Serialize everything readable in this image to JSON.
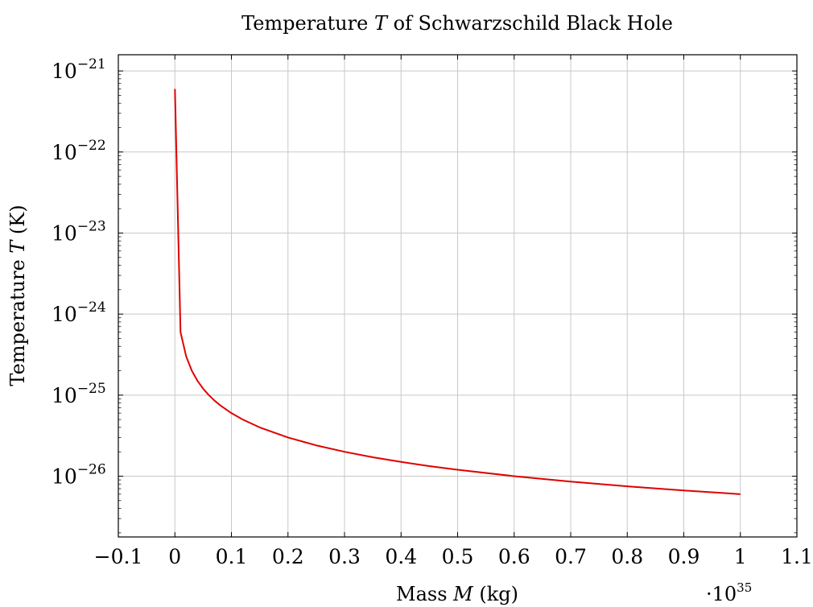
{
  "chart_data": {
    "type": "line",
    "title": "Temperature T of Schwarzschild Black Hole",
    "title_parts": {
      "before": "Temperature ",
      "var": "T",
      "after": " of Schwarzschild Black Hole"
    },
    "xlabel": "Mass M (kg)",
    "xlabel_parts": {
      "before": "Mass ",
      "var": "M",
      "after": " (kg)"
    },
    "ylabel": "Temperature T (K)",
    "ylabel_parts": {
      "before": "Temperature ",
      "var": "T",
      "after": " (K)"
    },
    "x_scale_note": {
      "base": "·10",
      "exp": "35"
    },
    "xlim": [
      -0.1,
      1.1
    ],
    "ylim_log10": [
      -26.75,
      -20.8
    ],
    "y_scale": "log",
    "grid": true,
    "x_ticks": [
      {
        "value": -0.1,
        "label": "−0.1"
      },
      {
        "value": 0,
        "label": "0"
      },
      {
        "value": 0.1,
        "label": "0.1"
      },
      {
        "value": 0.2,
        "label": "0.2"
      },
      {
        "value": 0.3,
        "label": "0.3"
      },
      {
        "value": 0.4,
        "label": "0.4"
      },
      {
        "value": 0.5,
        "label": "0.5"
      },
      {
        "value": 0.6,
        "label": "0.6"
      },
      {
        "value": 0.7,
        "label": "0.7"
      },
      {
        "value": 0.8,
        "label": "0.8"
      },
      {
        "value": 0.9,
        "label": "0.9"
      },
      {
        "value": 1,
        "label": "1"
      },
      {
        "value": 1.1,
        "label": "1.1"
      }
    ],
    "y_ticks": [
      {
        "exp": -21,
        "base": "10",
        "sup": "−21"
      },
      {
        "exp": -22,
        "base": "10",
        "sup": "−22"
      },
      {
        "exp": -23,
        "base": "10",
        "sup": "−23"
      },
      {
        "exp": -24,
        "base": "10",
        "sup": "−24"
      },
      {
        "exp": -25,
        "base": "10",
        "sup": "−25"
      },
      {
        "exp": -26,
        "base": "10",
        "sup": "−26"
      }
    ],
    "series": [
      {
        "color": "#e00000",
        "points": [
          [
            0.0001,
            6e-22
          ],
          [
            0.01,
            6e-25
          ],
          [
            0.02,
            3e-25
          ],
          [
            0.03,
            2e-25
          ],
          [
            0.04,
            1.5e-25
          ],
          [
            0.05,
            1.2e-25
          ],
          [
            0.06,
            1e-25
          ],
          [
            0.07,
            8.57e-26
          ],
          [
            0.08,
            7.5e-26
          ],
          [
            0.1,
            6e-26
          ],
          [
            0.12,
            5e-26
          ],
          [
            0.15,
            4e-26
          ],
          [
            0.2,
            3e-26
          ],
          [
            0.25,
            2.4e-26
          ],
          [
            0.3,
            2e-26
          ],
          [
            0.35,
            1.71e-26
          ],
          [
            0.4,
            1.5e-26
          ],
          [
            0.45,
            1.33e-26
          ],
          [
            0.5,
            1.2e-26
          ],
          [
            0.6,
            1e-26
          ],
          [
            0.7,
            8.57e-27
          ],
          [
            0.8,
            7.5e-27
          ],
          [
            0.9,
            6.67e-27
          ],
          [
            1.0,
            6e-27
          ]
        ]
      }
    ]
  }
}
